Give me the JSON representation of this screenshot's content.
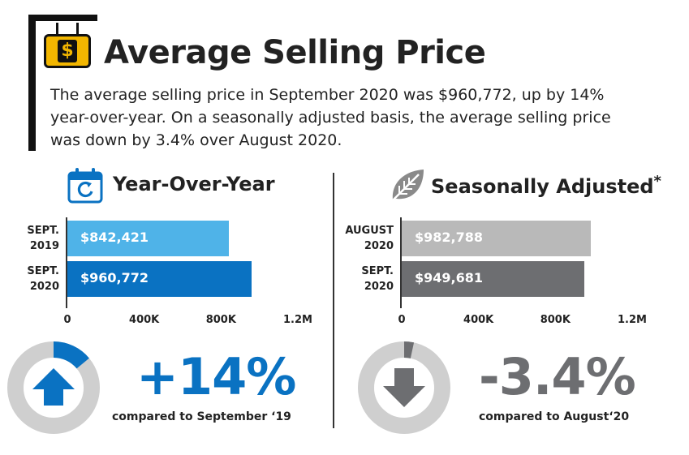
{
  "header": {
    "title": "Average Selling Price",
    "intro": "The average selling price in September 2020 was $960,772, up by 14% year-over-year. On a seasonally adjusted basis, the average selling price was down by 3.4% over August 2020.",
    "sign_symbol": "$"
  },
  "colors": {
    "sign": "#f2b600",
    "yoy_2019": "#4fb3e8",
    "yoy_2020": "#0a72c2",
    "sa_aug": "#b9b9b9",
    "sa_sept": "#6d6e71",
    "donut_track": "#cfcfcf"
  },
  "sections": {
    "yoy": {
      "title": "Year-Over-Year",
      "icon": "calendar-refresh-icon"
    },
    "sa": {
      "title": "Seasonally Adjusted",
      "title_mark": "*",
      "icon": "leaf-icon"
    }
  },
  "chart_data": [
    {
      "type": "bar",
      "orientation": "horizontal",
      "title": "Year-Over-Year",
      "categories": [
        "SEPT. 2019",
        "SEPT. 2020"
      ],
      "category_lines": [
        [
          "SEPT.",
          "2019"
        ],
        [
          "SEPT.",
          "2020"
        ]
      ],
      "values": [
        842421,
        960772
      ],
      "value_labels": [
        "$842,421",
        "$960,772"
      ],
      "xlim": [
        0,
        1200000
      ],
      "ticks": [
        0,
        400000,
        800000,
        1200000
      ],
      "tick_labels": [
        "0",
        "400K",
        "800K",
        "1.2M"
      ]
    },
    {
      "type": "bar",
      "orientation": "horizontal",
      "title": "Seasonally Adjusted*",
      "categories": [
        "AUGUST 2020",
        "SEPT. 2020"
      ],
      "category_lines": [
        [
          "AUGUST",
          "2020"
        ],
        [
          "SEPT.",
          "2020"
        ]
      ],
      "values": [
        982788,
        949681
      ],
      "value_labels": [
        "$982,788",
        "$949,681"
      ],
      "xlim": [
        0,
        1200000
      ],
      "ticks": [
        0,
        400000,
        800000,
        1200000
      ],
      "tick_labels": [
        "0",
        "400K",
        "800K",
        "1.2M"
      ]
    }
  ],
  "summary": {
    "yoy": {
      "pct_text": "+14%",
      "pct_value": 14,
      "compare": "compared to September ‘19",
      "direction": "up",
      "icon": "arrow-up-icon"
    },
    "sa": {
      "pct_text": "-3.4%",
      "pct_value": -3.4,
      "compare": "compared to August‘20",
      "direction": "down",
      "icon": "arrow-down-icon"
    }
  }
}
